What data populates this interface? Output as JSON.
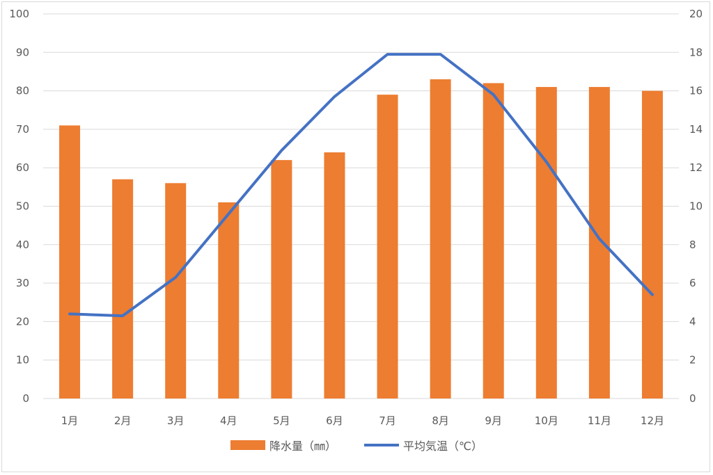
{
  "chart_data": {
    "type": "bar",
    "categories": [
      "1月",
      "2月",
      "3月",
      "4月",
      "5月",
      "6月",
      "7月",
      "8月",
      "9月",
      "10月",
      "11月",
      "12月"
    ],
    "series": [
      {
        "name": "降水量（㎜）",
        "type": "bar",
        "axis": "left",
        "color": "#ed7d31",
        "values": [
          71,
          57,
          56,
          51,
          62,
          64,
          79,
          83,
          82,
          81,
          81,
          80
        ]
      },
      {
        "name": "平均気温（℃）",
        "type": "line",
        "axis": "right",
        "color": "#4472c4",
        "values": [
          4.4,
          4.3,
          6.3,
          9.6,
          12.9,
          15.7,
          17.9,
          17.9,
          15.8,
          12.3,
          8.3,
          5.4
        ]
      }
    ],
    "ylim": [
      0,
      100
    ],
    "y2lim": [
      0,
      20
    ],
    "yticks": [
      0,
      10,
      20,
      30,
      40,
      50,
      60,
      70,
      80,
      90,
      100
    ],
    "y2ticks": [
      0,
      2,
      4,
      6,
      8,
      10,
      12,
      14,
      16,
      18,
      20
    ],
    "grid": true,
    "legend_position": "bottom"
  }
}
